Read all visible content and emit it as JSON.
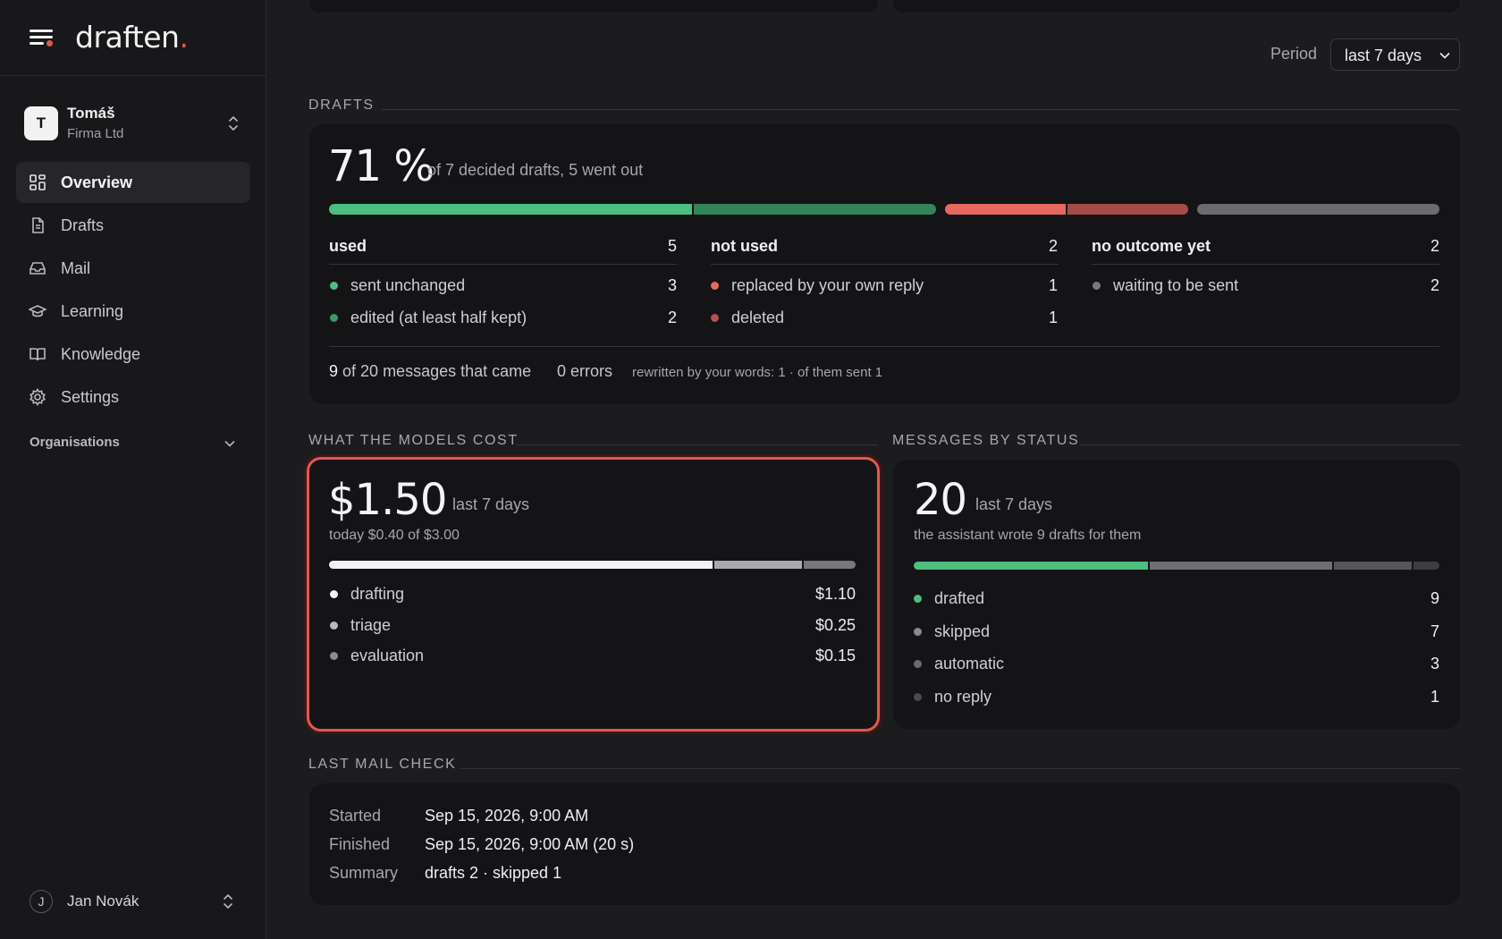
{
  "brand": {
    "name": "draften",
    "dot": "."
  },
  "account": {
    "initial": "T",
    "name": "Tomáš",
    "org": "Firma Ltd"
  },
  "nav": [
    {
      "label": "Overview",
      "icon": "grid-icon",
      "active": true
    },
    {
      "label": "Drafts",
      "icon": "document-icon"
    },
    {
      "label": "Mail",
      "icon": "inbox-icon"
    },
    {
      "label": "Learning",
      "icon": "graduation-cap-icon"
    },
    {
      "label": "Knowledge",
      "icon": "book-icon"
    },
    {
      "label": "Settings",
      "icon": "gear-icon"
    }
  ],
  "organisations_label": "Organisations",
  "user": {
    "initial": "J",
    "name": "Jan Novák"
  },
  "period": {
    "label": "Period",
    "value": "last 7 days"
  },
  "drafts": {
    "section": "DRAFTS",
    "percent": "71 %",
    "summary": "of 7 decided drafts, 5 went out",
    "bar": [
      {
        "name": "sent unchanged",
        "value": 3,
        "color": "#4cbf7f"
      },
      {
        "name": "edited (at least half kept)",
        "value": 2,
        "color": "#33845b"
      },
      {
        "name": "replaced by your own reply",
        "value": 1,
        "color": "#e8675f"
      },
      {
        "name": "deleted",
        "value": 1,
        "color": "#a44c48"
      },
      {
        "name": "waiting to be sent",
        "value": 2,
        "color": "#6a6a70"
      }
    ],
    "columns": [
      {
        "title": "used",
        "count": "5",
        "rows": [
          {
            "label": "sent unchanged",
            "value": "3",
            "color": "#4cbf7f"
          },
          {
            "label": "edited (at least half kept)",
            "value": "2",
            "color": "#3a9a68"
          }
        ]
      },
      {
        "title": "not used",
        "count": "2",
        "rows": [
          {
            "label": "replaced by your own reply",
            "value": "1",
            "color": "#e8675f"
          },
          {
            "label": "deleted",
            "value": "1",
            "color": "#b4514c"
          }
        ]
      },
      {
        "title": "no outcome yet",
        "count": "2",
        "rows": [
          {
            "label": "waiting to be sent",
            "value": "2",
            "color": "#7a7a80"
          }
        ]
      }
    ],
    "footer": {
      "count": "9",
      "messages": "of 20 messages that came",
      "errors": "0 errors",
      "rewritten": "rewritten by your words: 1 · of them sent 1"
    }
  },
  "cost": {
    "section": "WHAT THE MODELS COST",
    "amount": "$1.50",
    "period": "last 7 days",
    "today": "today $0.40 of $3.00",
    "bar": [
      {
        "name": "drafting",
        "value": 1.1,
        "color": "#f2f2f4"
      },
      {
        "name": "triage",
        "value": 0.25,
        "color": "#a9a9ae"
      },
      {
        "name": "evaluation",
        "value": 0.15,
        "color": "#77777c"
      }
    ],
    "rows": [
      {
        "label": "drafting",
        "value": "$1.10",
        "color": "#f2f2f4"
      },
      {
        "label": "triage",
        "value": "$0.25",
        "color": "#b9b9be"
      },
      {
        "label": "evaluation",
        "value": "$0.15",
        "color": "#8a8a90"
      }
    ]
  },
  "status": {
    "section": "MESSAGES BY STATUS",
    "count": "20",
    "period": "last 7 days",
    "subtitle": "the assistant wrote 9 drafts for them",
    "bar": [
      {
        "name": "drafted",
        "value": 9,
        "color": "#4cbf7f"
      },
      {
        "name": "skipped",
        "value": 7,
        "color": "#6e6e74"
      },
      {
        "name": "automatic",
        "value": 3,
        "color": "#55555a"
      },
      {
        "name": "no reply",
        "value": 1,
        "color": "#3d3d42"
      }
    ],
    "rows": [
      {
        "label": "drafted",
        "value": "9",
        "color": "#4cbf7f"
      },
      {
        "label": "skipped",
        "value": "7",
        "color": "#8a8a90"
      },
      {
        "label": "automatic",
        "value": "3",
        "color": "#6a6a70"
      },
      {
        "label": "no reply",
        "value": "1",
        "color": "#4a4a50"
      }
    ]
  },
  "mail_check": {
    "section": "LAST MAIL CHECK",
    "rows": [
      {
        "key": "Started",
        "value": "Sep 15, 2026, 9:00 AM"
      },
      {
        "key": "Finished",
        "value": "Sep 15, 2026, 9:00 AM (20 s)"
      },
      {
        "key": "Summary",
        "value": "drafts 2 · skipped 1"
      }
    ]
  }
}
